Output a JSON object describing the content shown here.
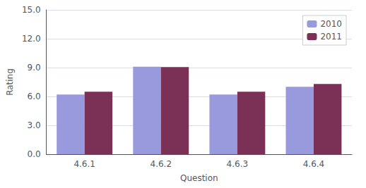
{
  "chart_data": {
    "type": "bar",
    "xlabel": "Question",
    "ylabel": "Rating",
    "categories": [
      "4.6.1",
      "4.6.2",
      "4.6.3",
      "4.6.4"
    ],
    "series": [
      {
        "name": "2010",
        "color": "#9999DD",
        "values": [
          6.2,
          9.1,
          6.2,
          7.0
        ]
      },
      {
        "name": "2011",
        "color": "#7B3055",
        "values": [
          6.5,
          9.05,
          6.5,
          7.3
        ]
      }
    ],
    "ylim": [
      0,
      15.0
    ],
    "yticks": [
      {
        "value": 0.0,
        "label": "0.0"
      },
      {
        "value": 3.0,
        "label": "3.0"
      },
      {
        "value": 6.0,
        "label": "6.0"
      },
      {
        "value": 9.0,
        "label": "9.0"
      },
      {
        "value": 12.0,
        "label": "12.0"
      },
      {
        "value": 15.0,
        "label": "15.0"
      }
    ],
    "grid": true,
    "legend": "upper right"
  }
}
